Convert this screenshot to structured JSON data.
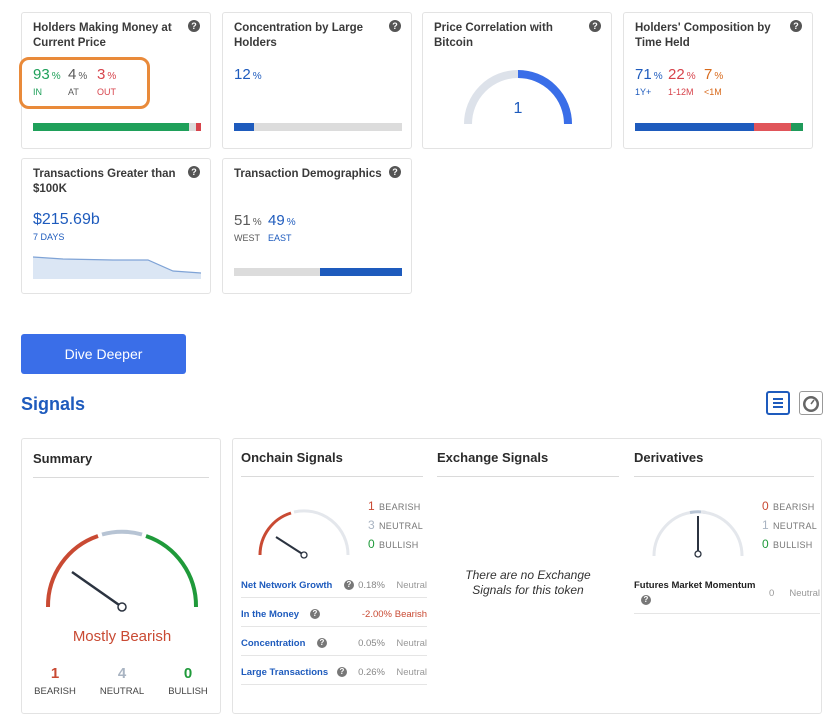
{
  "cards": {
    "money": {
      "title": "Holders Making Money at Current Price",
      "in_value": "93",
      "in_label": "IN",
      "at_value": "4",
      "at_label": "AT",
      "out_value": "3",
      "out_label": "OUT",
      "pct": "%",
      "bar_segments": [
        {
          "value": 0.93,
          "color": "#1fa05a"
        },
        {
          "value": 0.04,
          "color": "#dcdcdc"
        },
        {
          "value": 0.03,
          "color": "#d7434b"
        }
      ]
    },
    "concentration": {
      "title": "Concentration by Large Holders",
      "value": "12",
      "pct": "%",
      "fill": 0.12
    },
    "correlation": {
      "title": "Price Correlation with Bitcoin",
      "value": "1",
      "level": 1.0
    },
    "composition": {
      "title": "Holders' Composition by Time Held",
      "a_value": "71",
      "a_label": "1Y+",
      "b_value": "22",
      "b_label": "1-12M",
      "c_value": "7",
      "c_label": "<1M",
      "pct": "%",
      "bar_segments": [
        {
          "value": 0.71,
          "color": "#1e5bbd"
        },
        {
          "value": 0.22,
          "color": "#e0555a"
        },
        {
          "value": 0.07,
          "color": "#1f9a5a"
        }
      ]
    },
    "transactions": {
      "title": "Transactions Greater than $100K",
      "value": "$215.69b",
      "period": "7 DAYS"
    },
    "demographics": {
      "title": "Transaction Demographics",
      "west_value": "51",
      "west_label": "WEST",
      "east_value": "49",
      "east_label": "EAST",
      "pct": "%",
      "bar_segments": [
        {
          "value": 0.51,
          "color": "#dcdcdc"
        },
        {
          "value": 0.49,
          "color": "#1e5bbd"
        }
      ]
    }
  },
  "dive_button": "Dive Deeper",
  "signals": {
    "title": "Signals",
    "list_icon": "list-icon",
    "gauge_icon": "gauge-icon",
    "summary": {
      "title": "Summary",
      "verdict": "Mostly Bearish",
      "bearish_count": "1",
      "bearish_label": "BEARISH",
      "neutral_count": "4",
      "neutral_label": "NEUTRAL",
      "bullish_count": "0",
      "bullish_label": "BULLISH"
    },
    "onchain": {
      "title": "Onchain Signals",
      "bearish_count": "1",
      "bearish_label": "BEARISH",
      "neutral_count": "3",
      "neutral_label": "NEUTRAL",
      "bullish_count": "0",
      "bullish_label": "BULLISH",
      "rows": [
        {
          "name": "Net Network Growth",
          "value": "0.18%",
          "status": "Neutral"
        },
        {
          "name": "In the Money",
          "value": "-2.00%",
          "status": "Bearish"
        },
        {
          "name": "Concentration",
          "value": "0.05%",
          "status": "Neutral"
        },
        {
          "name": "Large Transactions",
          "value": "0.26%",
          "status": "Neutral"
        }
      ]
    },
    "exchange": {
      "title": "Exchange Signals",
      "empty_line1": "There are no Exchange",
      "empty_line2": "Signals for this token"
    },
    "derivatives": {
      "title": "Derivatives",
      "bearish_count": "0",
      "bearish_label": "BEARISH",
      "neutral_count": "1",
      "neutral_label": "NEUTRAL",
      "bullish_count": "0",
      "bullish_label": "BULLISH",
      "row_name": "Futures Market Momentum",
      "row_value": "0",
      "row_status": "Neutral"
    }
  },
  "colors": {
    "accent": "#1e5bbd",
    "button": "#3a6ee8",
    "bearish": "#c94a33",
    "bullish": "#1f9a3a",
    "neutral": "#b7c4d4",
    "highlight": "#e98a3a"
  }
}
